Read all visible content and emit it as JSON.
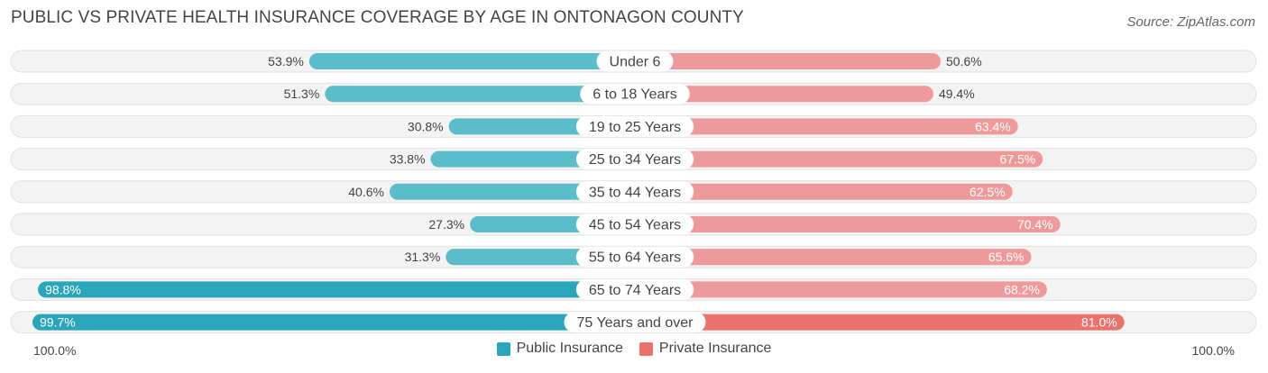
{
  "title": "PUBLIC VS PRIVATE HEALTH INSURANCE COVERAGE BY AGE IN ONTONAGON COUNTY",
  "source": "Source: ZipAtlas.com",
  "colors": {
    "public": "#5bbcca",
    "public_strong": "#2ba5b9",
    "private": "#ef9a9a",
    "private_strong": "#e9726c",
    "track": "#f1f1f1"
  },
  "chart_data": {
    "type": "bar",
    "orientation": "horizontal-diverging",
    "title": "PUBLIC VS PRIVATE HEALTH INSURANCE COVERAGE BY AGE IN ONTONAGON COUNTY",
    "categories": [
      "Under 6",
      "6 to 18 Years",
      "19 to 25 Years",
      "25 to 34 Years",
      "35 to 44 Years",
      "45 to 54 Years",
      "55 to 64 Years",
      "65 to 74 Years",
      "75 Years and over"
    ],
    "series": [
      {
        "name": "Public Insurance",
        "values": [
          53.9,
          51.3,
          30.8,
          33.8,
          40.6,
          27.3,
          31.3,
          98.8,
          99.7
        ],
        "labels": [
          "53.9%",
          "51.3%",
          "30.8%",
          "33.8%",
          "40.6%",
          "27.3%",
          "31.3%",
          "98.8%",
          "99.7%"
        ]
      },
      {
        "name": "Private Insurance",
        "values": [
          50.6,
          49.4,
          63.4,
          67.5,
          62.5,
          70.4,
          65.6,
          68.2,
          81.0
        ],
        "labels": [
          "50.6%",
          "49.4%",
          "63.4%",
          "67.5%",
          "62.5%",
          "70.4%",
          "65.6%",
          "68.2%",
          "81.0%"
        ]
      }
    ],
    "xlim": [
      -100,
      100
    ],
    "axis_left_label": "100.0%",
    "axis_right_label": "100.0%",
    "legend_position": "bottom-center"
  },
  "legend": {
    "public": "Public Insurance",
    "private": "Private Insurance"
  }
}
